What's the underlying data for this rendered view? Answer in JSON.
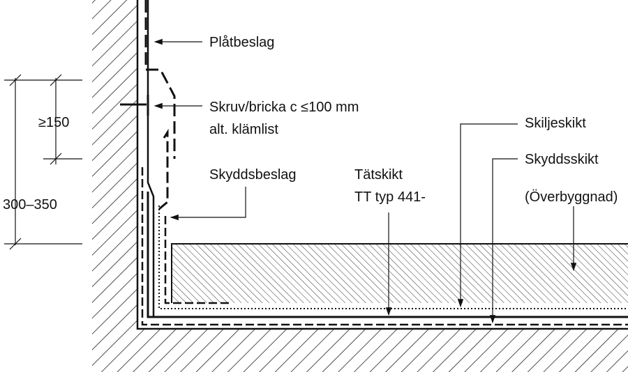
{
  "labels": {
    "platbeslag": "Plåtbeslag",
    "skruv_line1": "Skruv/bricka c ≤100 mm",
    "skruv_line2": "alt. klämlist",
    "skyddsbeslag": "Skyddsbeslag",
    "tatskikt_line1": "Tätskikt",
    "tatskikt_line2": "TT typ 441-",
    "skiljeskikt": "Skiljeskikt",
    "skyddsskikt": "Skyddsskikt",
    "overbyggnad": "(Överbyggnad)"
  },
  "dimensions": {
    "upper": "≥150",
    "total": "300–350"
  },
  "colors": {
    "line": "#111111",
    "hatch": "#222222",
    "background": "#ffffff"
  }
}
